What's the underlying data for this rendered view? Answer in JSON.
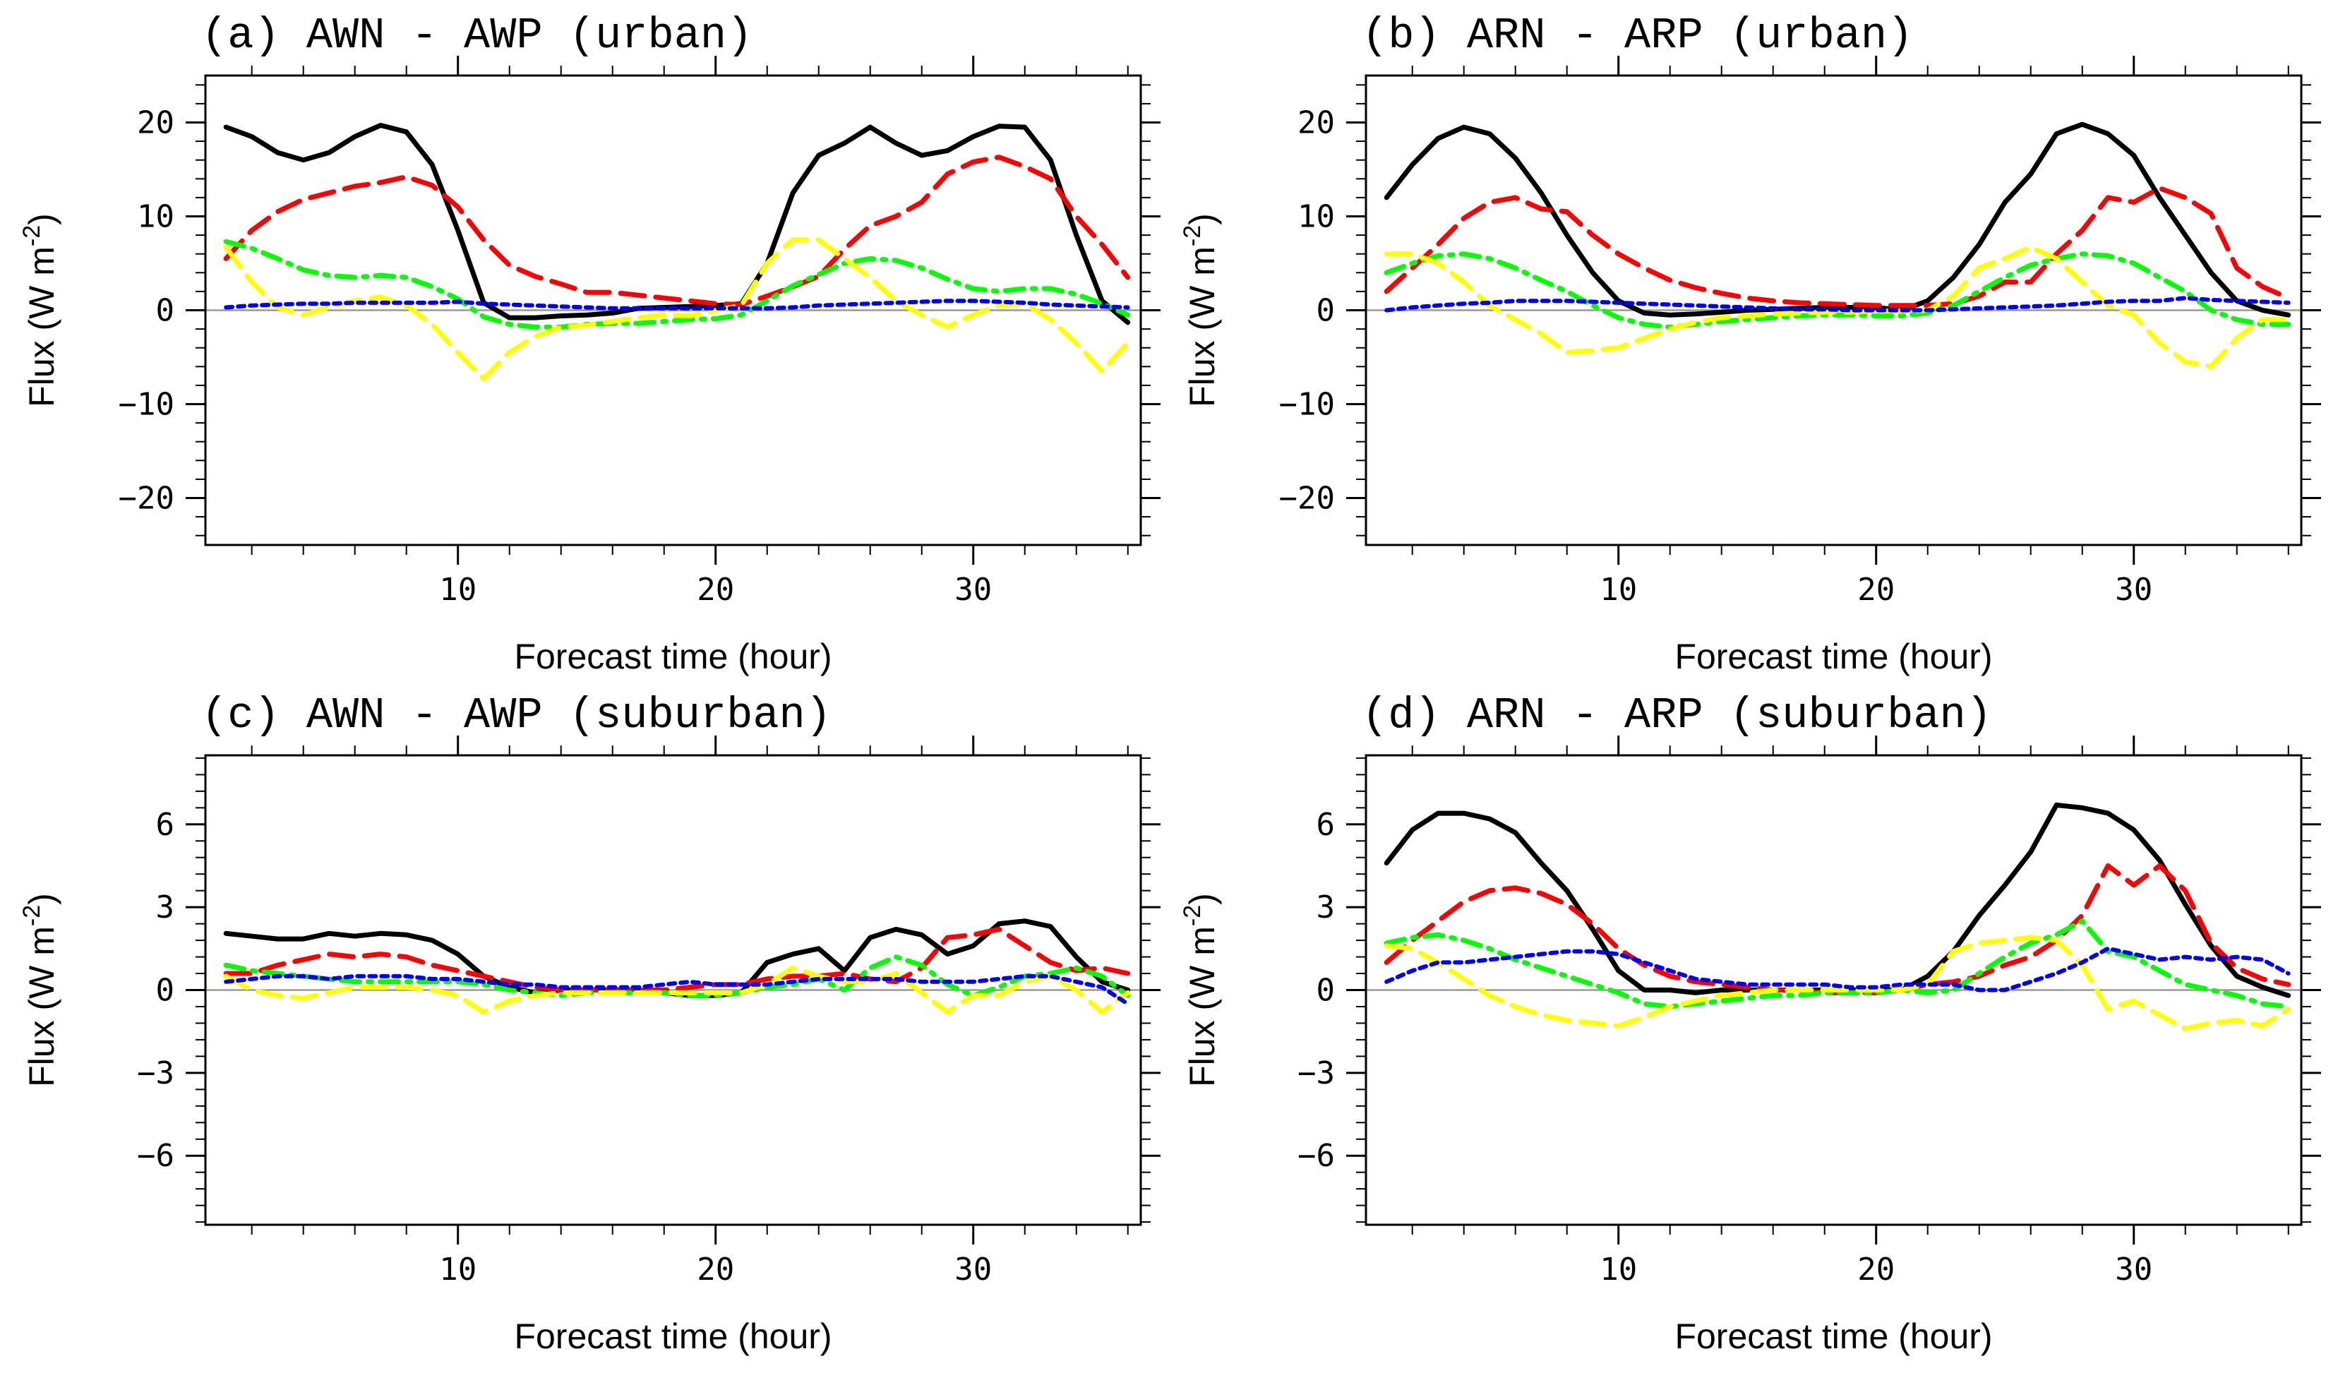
{
  "chart_data": [
    {
      "type": "line",
      "title": "(a) AWN - AWP (urban)",
      "xlabel": "Forecast time (hour)",
      "ylabel": "Flux (W m^-2)",
      "ylabel_parts": {
        "main": "Flux (W m",
        "sup": "-2",
        "end": ")"
      },
      "xlim": [
        0.2,
        36.5
      ],
      "ylim": [
        -25,
        25
      ],
      "xticks": [
        10,
        20,
        30
      ],
      "xtick_labels": [
        "10",
        "20",
        "30"
      ],
      "yticks": [
        -20,
        -10,
        0,
        10,
        20
      ],
      "ytick_labels": [
        "−20",
        "−10",
        "0",
        "10",
        "20"
      ],
      "grid": false,
      "x": [
        1,
        2,
        3,
        4,
        5,
        6,
        7,
        8,
        9,
        10,
        11,
        12,
        13,
        14,
        15,
        16,
        17,
        18,
        19,
        20,
        21,
        22,
        23,
        24,
        25,
        26,
        27,
        28,
        29,
        30,
        31,
        32,
        33,
        34,
        35,
        36
      ],
      "series": [
        {
          "color": "#000000",
          "style": "solid",
          "values": [
            19.5,
            18.5,
            16.8,
            16,
            16.8,
            18.5,
            19.7,
            19,
            15.5,
            8.5,
            0.8,
            -0.8,
            -0.8,
            -0.6,
            -0.5,
            -0.3,
            0.2,
            0.3,
            0.4,
            0.5,
            0.7,
            5,
            12.5,
            16.5,
            17.8,
            19.5,
            17.8,
            16.5,
            17,
            18.5,
            19.6,
            19.5,
            16,
            8,
            1,
            -1.3
          ]
        },
        {
          "color": "#ff0000",
          "style": "dash",
          "values": [
            5.5,
            8.5,
            10.5,
            11.8,
            12.5,
            13.2,
            13.6,
            14.2,
            13.3,
            11,
            7.5,
            4.8,
            3.6,
            2.8,
            1.9,
            1.9,
            1.6,
            1.3,
            1,
            0.7,
            0.6,
            1.5,
            2.5,
            3.6,
            6.5,
            9,
            10,
            11.5,
            14.5,
            15.8,
            16.3,
            15.3,
            14,
            10,
            7,
            3.5
          ]
        },
        {
          "color": "#00ff00",
          "style": "dashdot",
          "values": [
            7.3,
            6.6,
            5.5,
            4.3,
            3.7,
            3.5,
            3.7,
            3.5,
            2.5,
            1.2,
            -0.7,
            -1.5,
            -1.8,
            -1.8,
            -1.5,
            -1.4,
            -1.4,
            -1.2,
            -1,
            -0.9,
            -0.5,
            1,
            2.6,
            3.8,
            5,
            5.5,
            5.3,
            4.5,
            3.3,
            2.3,
            2,
            2.3,
            2.3,
            1.7,
            0.7,
            -0.5
          ]
        },
        {
          "color": "#ffff00",
          "style": "dash",
          "values": [
            6.7,
            3,
            0.3,
            -0.5,
            0.3,
            1,
            1.4,
            0.5,
            -1.5,
            -4.5,
            -7.3,
            -4.5,
            -2.8,
            -1.8,
            -1.6,
            -1.2,
            -0.8,
            -0.5,
            -0.6,
            0,
            0.5,
            5,
            7.5,
            7.5,
            5.5,
            3.5,
            1,
            -0.5,
            -1.8,
            -0.5,
            0.5,
            0.7,
            -1,
            -3.5,
            -6.5,
            -3.5
          ]
        },
        {
          "color": "#0000ff",
          "style": "dot",
          "values": [
            0.3,
            0.5,
            0.6,
            0.7,
            0.7,
            0.8,
            0.8,
            0.8,
            0.8,
            0.9,
            0.7,
            0.6,
            0.5,
            0.4,
            0.3,
            0.2,
            0.2,
            0.2,
            0.2,
            0.2,
            0.2,
            0.2,
            0.3,
            0.5,
            0.6,
            0.7,
            0.8,
            0.9,
            1,
            1,
            0.9,
            0.8,
            0.6,
            0.5,
            0.4,
            0.3
          ]
        }
      ]
    },
    {
      "type": "line",
      "title": "(b) ARN - ARP (urban)",
      "xlabel": "Forecast time (hour)",
      "ylabel": "Flux (W m^-2)",
      "ylabel_parts": {
        "main": "Flux (W m",
        "sup": "-2",
        "end": ")"
      },
      "xlim": [
        0.2,
        36.5
      ],
      "ylim": [
        -25,
        25
      ],
      "xticks": [
        10,
        20,
        30
      ],
      "xtick_labels": [
        "10",
        "20",
        "30"
      ],
      "yticks": [
        -20,
        -10,
        0,
        10,
        20
      ],
      "ytick_labels": [
        "−20",
        "−10",
        "0",
        "10",
        "20"
      ],
      "grid": false,
      "x": [
        1,
        2,
        3,
        4,
        5,
        6,
        7,
        8,
        9,
        10,
        11,
        12,
        13,
        14,
        15,
        16,
        17,
        18,
        19,
        20,
        21,
        22,
        23,
        24,
        25,
        26,
        27,
        28,
        29,
        30,
        31,
        32,
        33,
        34,
        35,
        36
      ],
      "series": [
        {
          "color": "#000000",
          "style": "solid",
          "values": [
            12,
            15.5,
            18.3,
            19.5,
            18.8,
            16.2,
            12.5,
            8,
            4,
            1,
            -0.3,
            -0.5,
            -0.4,
            -0.2,
            0,
            0.1,
            0.2,
            0.3,
            0.3,
            0.3,
            0,
            1,
            3.5,
            7,
            11.5,
            14.5,
            18.8,
            19.8,
            18.8,
            16.5,
            12,
            8,
            4,
            1,
            0,
            -0.5
          ]
        },
        {
          "color": "#ff0000",
          "style": "dash",
          "values": [
            2,
            4.5,
            7,
            9.8,
            11.5,
            12,
            10.8,
            10.5,
            8,
            6,
            4.5,
            3.2,
            2.4,
            1.8,
            1.3,
            1,
            0.8,
            0.7,
            0.6,
            0.5,
            0.5,
            0.5,
            0.7,
            1.5,
            3,
            3,
            6,
            8.5,
            12,
            11.5,
            13,
            12,
            10.3,
            4.5,
            2.5,
            1.3
          ]
        },
        {
          "color": "#00ff00",
          "style": "dashdot",
          "values": [
            4,
            5,
            5.8,
            6,
            5.5,
            4.5,
            3.2,
            2,
            0.5,
            -0.8,
            -1.5,
            -1.8,
            -1.5,
            -1.2,
            -1,
            -0.8,
            -0.6,
            -0.5,
            -0.5,
            -0.6,
            -0.6,
            -0.3,
            0.5,
            2,
            3.5,
            4.8,
            5.5,
            6,
            5.8,
            5,
            3.5,
            2,
            0,
            -1,
            -1.5,
            -1.5
          ]
        },
        {
          "color": "#ffff00",
          "style": "dash",
          "values": [
            6,
            6,
            5,
            3,
            0.5,
            -1,
            -2.5,
            -4.5,
            -4.3,
            -4,
            -3,
            -2,
            -1.3,
            -0.8,
            -0.6,
            -0.4,
            -0.3,
            -0.2,
            -0.2,
            -0.1,
            -0.1,
            0,
            1.5,
            4.5,
            5.5,
            6.7,
            5.5,
            3,
            0.5,
            -0.5,
            -3.5,
            -5.5,
            -6,
            -3,
            -1,
            -1
          ]
        },
        {
          "color": "#0000ff",
          "style": "dot",
          "values": [
            0,
            0.3,
            0.5,
            0.7,
            0.8,
            1,
            1,
            1,
            0.9,
            0.8,
            0.7,
            0.6,
            0.5,
            0.4,
            0.3,
            0.2,
            0.1,
            0.1,
            0,
            0,
            0,
            0,
            0.1,
            0.2,
            0.3,
            0.4,
            0.5,
            0.7,
            0.9,
            1,
            1,
            1.3,
            1.1,
            1,
            0.9,
            0.8
          ]
        }
      ]
    },
    {
      "type": "line",
      "title": "(c) AWN - AWP (suburban)",
      "xlabel": "Forecast time (hour)",
      "ylabel": "Flux (W m^-2)",
      "ylabel_parts": {
        "main": "Flux (W m",
        "sup": "-2",
        "end": ")"
      },
      "xlim": [
        0.2,
        36.5
      ],
      "ylim": [
        -8.5,
        8.5
      ],
      "xticks": [
        10,
        20,
        30
      ],
      "xtick_labels": [
        "10",
        "20",
        "30"
      ],
      "yticks": [
        -6,
        -3,
        0,
        3,
        6
      ],
      "ytick_labels": [
        "−6",
        "−3",
        "0",
        "3",
        "6"
      ],
      "grid": false,
      "x": [
        1,
        2,
        3,
        4,
        5,
        6,
        7,
        8,
        9,
        10,
        11,
        12,
        13,
        14,
        15,
        16,
        17,
        18,
        19,
        20,
        21,
        22,
        23,
        24,
        25,
        26,
        27,
        28,
        29,
        30,
        31,
        32,
        33,
        34,
        35,
        36
      ],
      "series": [
        {
          "color": "#000000",
          "style": "solid",
          "values": [
            2.05,
            1.95,
            1.85,
            1.85,
            2.05,
            1.95,
            2.05,
            2,
            1.8,
            1.3,
            0.5,
            0.1,
            -0.1,
            0,
            0,
            0,
            0,
            -0.1,
            -0.2,
            -0.2,
            -0.1,
            1,
            1.3,
            1.5,
            0.7,
            1.9,
            2.2,
            2,
            1.3,
            1.6,
            2.4,
            2.5,
            2.3,
            1.2,
            0.3,
            0
          ]
        },
        {
          "color": "#ff0000",
          "style": "dash",
          "values": [
            0.6,
            0.6,
            0.9,
            1.1,
            1.3,
            1.2,
            1.3,
            1.2,
            0.9,
            0.7,
            0.5,
            0.3,
            0.1,
            0,
            0,
            0,
            0,
            0,
            0.1,
            0.2,
            0.2,
            0.4,
            0.5,
            0.5,
            0.6,
            0.4,
            0.3,
            0.8,
            1.9,
            2,
            2.2,
            1.6,
            1,
            0.7,
            0.8,
            0.6
          ]
        },
        {
          "color": "#00ff00",
          "style": "dashdot",
          "values": [
            0.9,
            0.7,
            0.6,
            0.5,
            0.4,
            0.3,
            0.3,
            0.3,
            0.3,
            0.3,
            0.2,
            0,
            -0.1,
            -0.2,
            -0.1,
            -0.1,
            -0.1,
            -0.1,
            -0.2,
            -0.2,
            -0.1,
            0.1,
            0.2,
            0.4,
            0,
            0.8,
            1.2,
            0.9,
            0.2,
            -0.2,
            0.1,
            0.5,
            0.6,
            0.8,
            0.5,
            -0.2
          ]
        },
        {
          "color": "#ffff00",
          "style": "dash",
          "values": [
            0.5,
            0,
            -0.2,
            -0.3,
            -0.1,
            0.1,
            0.1,
            0.1,
            0,
            -0.2,
            -0.8,
            -0.4,
            -0.2,
            -0.1,
            -0.1,
            -0.1,
            -0.1,
            -0.1,
            -0.1,
            -0.1,
            -0.1,
            0.2,
            0.8,
            0.5,
            0.3,
            0.3,
            0.6,
            -0.1,
            -0.8,
            -0.2,
            -0.2,
            0.3,
            0.5,
            0,
            -0.8,
            -0.1
          ]
        },
        {
          "color": "#0000ff",
          "style": "dot",
          "values": [
            0.3,
            0.4,
            0.5,
            0.5,
            0.4,
            0.5,
            0.5,
            0.5,
            0.4,
            0.4,
            0.3,
            0.2,
            0.2,
            0.1,
            0.1,
            0.1,
            0.1,
            0.2,
            0.3,
            0.2,
            0.2,
            0.2,
            0.3,
            0.4,
            0.4,
            0.4,
            0.4,
            0.3,
            0.3,
            0.3,
            0.4,
            0.5,
            0.5,
            0.3,
            0.1,
            -0.5
          ]
        }
      ]
    },
    {
      "type": "line",
      "title": "(d) ARN - ARP (suburban)",
      "xlabel": "Forecast time (hour)",
      "ylabel": "Flux (W m^-2)",
      "ylabel_parts": {
        "main": "Flux (W m",
        "sup": "-2",
        "end": ")"
      },
      "xlim": [
        0.2,
        36.5
      ],
      "ylim": [
        -8.5,
        8.5
      ],
      "xticks": [
        10,
        20,
        30
      ],
      "xtick_labels": [
        "10",
        "20",
        "30"
      ],
      "yticks": [
        -6,
        -3,
        0,
        3,
        6
      ],
      "ytick_labels": [
        "−6",
        "−3",
        "0",
        "3",
        "6"
      ],
      "grid": false,
      "x": [
        1,
        2,
        3,
        4,
        5,
        6,
        7,
        8,
        9,
        10,
        11,
        12,
        13,
        14,
        15,
        16,
        17,
        18,
        19,
        20,
        21,
        22,
        23,
        24,
        25,
        26,
        27,
        28,
        29,
        30,
        31,
        32,
        33,
        34,
        35,
        36
      ],
      "series": [
        {
          "color": "#000000",
          "style": "solid",
          "values": [
            4.6,
            5.8,
            6.4,
            6.4,
            6.2,
            5.7,
            4.6,
            3.6,
            2.2,
            0.7,
            0,
            0,
            -0.1,
            0,
            0,
            0,
            0,
            0,
            0,
            0,
            0,
            0.5,
            1.4,
            2.7,
            3.8,
            5,
            6.7,
            6.6,
            6.4,
            5.8,
            4.7,
            3.1,
            1.6,
            0.5,
            0.1,
            -0.2
          ]
        },
        {
          "color": "#ff0000",
          "style": "dash",
          "values": [
            1,
            1.8,
            2.5,
            3.2,
            3.6,
            3.7,
            3.5,
            3.1,
            2.4,
            1.5,
            0.9,
            0.5,
            0.3,
            0.2,
            0.1,
            0,
            0,
            -0.1,
            -0.1,
            -0.1,
            0,
            0.2,
            0.3,
            0.5,
            0.9,
            1.2,
            1.8,
            2.7,
            4.5,
            3.8,
            4.5,
            3.6,
            1.7,
            0.8,
            0.4,
            0.2
          ]
        },
        {
          "color": "#00ff00",
          "style": "dashdot",
          "values": [
            1.7,
            1.9,
            2,
            1.8,
            1.5,
            1.1,
            0.8,
            0.5,
            0.2,
            -0.1,
            -0.5,
            -0.6,
            -0.5,
            -0.4,
            -0.3,
            -0.2,
            -0.2,
            -0.1,
            -0.1,
            -0.1,
            0,
            -0.1,
            0,
            0.6,
            1.2,
            1.7,
            2,
            2.5,
            1.4,
            1.2,
            0.7,
            0.2,
            0,
            -0.2,
            -0.5,
            -0.6
          ]
        },
        {
          "color": "#ffff00",
          "style": "dash",
          "values": [
            1.6,
            1.5,
            1,
            0.4,
            -0.2,
            -0.6,
            -0.9,
            -1.1,
            -1.2,
            -1.3,
            -1,
            -0.6,
            -0.4,
            -0.2,
            -0.1,
            0,
            0,
            0,
            0,
            0,
            0,
            0.2,
            1.4,
            1.7,
            1.8,
            1.9,
            1.8,
            0.9,
            -0.7,
            -0.4,
            -0.9,
            -1.4,
            -1.2,
            -1.1,
            -1.3,
            -0.7
          ]
        },
        {
          "color": "#0000ff",
          "style": "dot",
          "values": [
            0.3,
            0.7,
            1,
            1,
            1.1,
            1.2,
            1.3,
            1.4,
            1.4,
            1.3,
            1,
            0.7,
            0.4,
            0.3,
            0.2,
            0.2,
            0.2,
            0.2,
            0.1,
            0.1,
            0.2,
            0.2,
            0.2,
            0,
            0,
            0.3,
            0.6,
            1,
            1.5,
            1.3,
            1.1,
            1.2,
            1.1,
            1.2,
            1.1,
            0.6
          ]
        }
      ]
    }
  ]
}
